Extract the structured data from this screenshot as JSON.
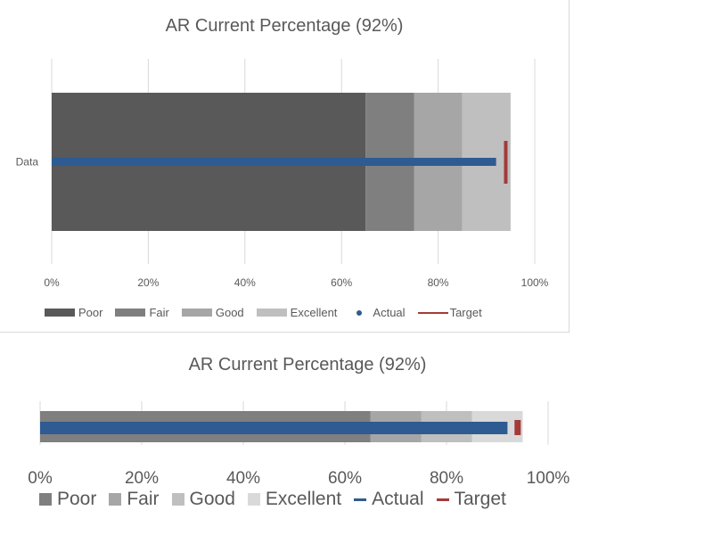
{
  "colors": {
    "poor": "#595959",
    "fair": "#7f7f7f",
    "good": "#a6a6a6",
    "excellent": "#bfbfbf",
    "actual": "#2e5b91",
    "target": "#a33b3b",
    "grid": "#d9d9d9",
    "poor2": "#7f7f7f",
    "fair2": "#a6a6a6",
    "good2": "#bfbfbf",
    "excellent2": "#d9d9d9"
  },
  "chart_data": [
    {
      "type": "bar",
      "title": "AR Current Percentage (92%)",
      "categories": [
        "Data"
      ],
      "series": [
        {
          "name": "Poor",
          "values": [
            65
          ]
        },
        {
          "name": "Fair",
          "values": [
            10
          ]
        },
        {
          "name": "Good",
          "values": [
            10
          ]
        },
        {
          "name": "Excellent",
          "values": [
            10
          ]
        },
        {
          "name": "Actual",
          "values": [
            92
          ]
        },
        {
          "name": "Target",
          "values": [
            94
          ]
        }
      ],
      "xlim": [
        0,
        100
      ],
      "ticks": [
        "0%",
        "20%",
        "40%",
        "60%",
        "80%",
        "100%"
      ],
      "grid": true,
      "legend_position": "bottom",
      "legend": [
        "Poor",
        "Fair",
        "Good",
        "Excellent",
        "Actual",
        "Target"
      ]
    },
    {
      "type": "bar",
      "title": "AR Current Percentage  (92%)",
      "categories": [
        ""
      ],
      "series": [
        {
          "name": "Poor",
          "values": [
            65
          ]
        },
        {
          "name": "Fair",
          "values": [
            10
          ]
        },
        {
          "name": "Good",
          "values": [
            10
          ]
        },
        {
          "name": "Excellent",
          "values": [
            10
          ]
        },
        {
          "name": "Actual",
          "values": [
            92
          ]
        },
        {
          "name": "Target",
          "values": [
            94
          ]
        }
      ],
      "xlim": [
        0,
        100
      ],
      "ticks": [
        "0%",
        "20%",
        "40%",
        "60%",
        "80%",
        "100%"
      ],
      "grid": true,
      "legend_position": "bottom",
      "legend": [
        "Poor",
        "Fair",
        "Good",
        "Excellent",
        "Actual",
        "Target"
      ]
    }
  ]
}
